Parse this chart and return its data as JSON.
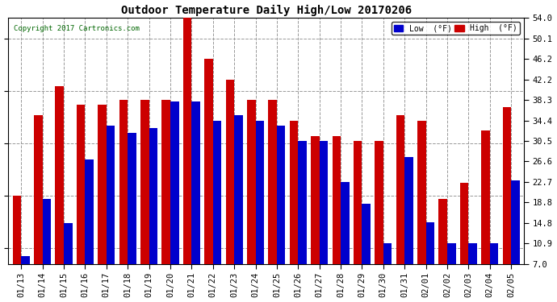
{
  "title": "Outdoor Temperature Daily High/Low 20170206",
  "copyright": "Copyright 2017 Cartronics.com",
  "legend_low": "Low  (°F)",
  "legend_high": "High  (°F)",
  "low_color": "#0000cc",
  "high_color": "#cc0000",
  "bg_color": "#ffffff",
  "yticks": [
    7.0,
    10.9,
    14.8,
    18.8,
    22.7,
    26.6,
    30.5,
    34.4,
    38.3,
    42.2,
    46.2,
    50.1,
    54.0
  ],
  "ylim": [
    7.0,
    54.0
  ],
  "dates": [
    "01/13",
    "01/14",
    "01/15",
    "01/16",
    "01/17",
    "01/18",
    "01/19",
    "01/20",
    "01/21",
    "01/22",
    "01/23",
    "01/24",
    "01/25",
    "01/26",
    "01/27",
    "01/28",
    "01/29",
    "01/30",
    "01/31",
    "02/01",
    "02/02",
    "02/03",
    "02/04",
    "02/05"
  ],
  "highs": [
    20.0,
    35.5,
    41.0,
    37.5,
    37.5,
    38.3,
    38.3,
    38.3,
    54.0,
    46.2,
    42.2,
    38.3,
    38.3,
    34.4,
    31.5,
    31.5,
    30.5,
    30.5,
    35.5,
    34.4,
    19.5,
    22.5,
    32.5,
    37.0
  ],
  "lows": [
    8.5,
    19.5,
    14.8,
    27.0,
    33.5,
    32.0,
    33.0,
    38.0,
    38.0,
    34.4,
    35.5,
    34.4,
    33.5,
    30.5,
    30.5,
    22.7,
    18.5,
    11.0,
    27.5,
    15.0,
    10.9,
    10.9,
    10.9,
    23.0
  ]
}
